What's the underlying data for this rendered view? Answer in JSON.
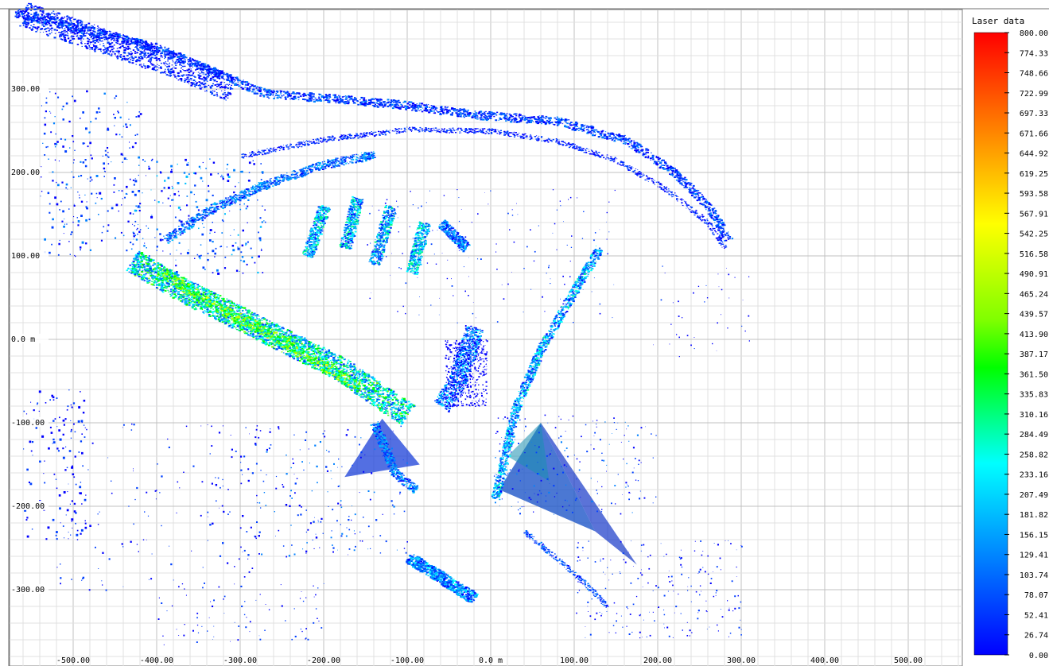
{
  "legend": {
    "title": "Laser data",
    "min": 0.0,
    "max": 800.0,
    "labels": [
      "800.00",
      "774.33",
      "748.66",
      "722.99",
      "697.33",
      "671.66",
      "644.92",
      "619.25",
      "593.58",
      "567.91",
      "542.25",
      "516.58",
      "490.91",
      "465.24",
      "439.57",
      "413.90",
      "387.17",
      "361.50",
      "335.83",
      "310.16",
      "284.49",
      "258.82",
      "233.16",
      "207.49",
      "181.82",
      "156.15",
      "129.41",
      "103.74",
      "78.07",
      "52.41",
      "26.74",
      "0.00"
    ],
    "colormap": [
      "#0000ff",
      "#0040ff",
      "#0080ff",
      "#00c0ff",
      "#00ffff",
      "#00ff80",
      "#00ff00",
      "#80ff00",
      "#c0ff00",
      "#ffff00",
      "#ffc000",
      "#ff8000",
      "#ff4000",
      "#ff0000"
    ]
  },
  "axes": {
    "unit": "m",
    "x_range": [
      -570,
      600
    ],
    "y_range": [
      -385,
      400
    ],
    "x_ticks": [
      {
        "value": -500,
        "label": "-500.00"
      },
      {
        "value": -400,
        "label": "-400.00"
      },
      {
        "value": -300,
        "label": "-300.00"
      },
      {
        "value": -200,
        "label": "-200.00"
      },
      {
        "value": -100,
        "label": "-100.00"
      },
      {
        "value": 0,
        "label": "0.0 m"
      },
      {
        "value": 100,
        "label": "100.00"
      },
      {
        "value": 200,
        "label": "200.00"
      },
      {
        "value": 300,
        "label": "300.00"
      },
      {
        "value": 400,
        "label": "400.00"
      },
      {
        "value": 500,
        "label": "500.00"
      }
    ],
    "y_ticks": [
      {
        "value": 300,
        "label": "300.00"
      },
      {
        "value": 200,
        "label": "200.00"
      },
      {
        "value": 100,
        "label": "100.00"
      },
      {
        "value": 0,
        "label": "0.0 m"
      },
      {
        "value": -100,
        "label": "-100.00"
      },
      {
        "value": -200,
        "label": "-200.00"
      },
      {
        "value": -300,
        "label": "-300.00"
      }
    ],
    "grid": true,
    "minor_divisions": 5
  }
}
